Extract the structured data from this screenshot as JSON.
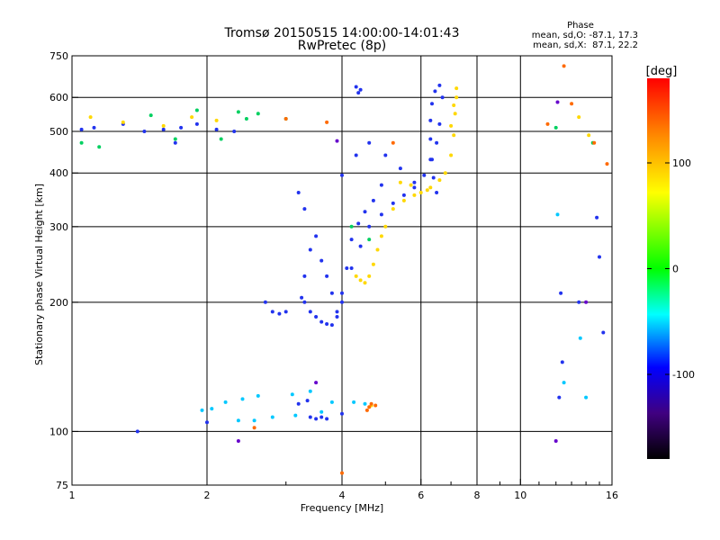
{
  "chart_data": {
    "type": "scatter",
    "title": "Tromsø 20150515 14:00:00-14:01:43",
    "subtitle": "RwPretec (8p)",
    "stats": {
      "heading": "Phase",
      "line1": "mean, sd,O: -87.1, 17.3",
      "line2": "mean, sd,X:  87.1, 22.2"
    },
    "xlabel": "Frequency [MHz]",
    "ylabel": "Stationary phase Virtual Height [km]",
    "x_scale": "log",
    "y_scale": "log",
    "xlim": [
      1,
      16
    ],
    "ylim": [
      75,
      750
    ],
    "x_ticks": [
      1,
      2,
      4,
      6,
      8,
      10,
      16
    ],
    "x_tick_labels": [
      "1",
      "2",
      "4",
      "6",
      "8",
      "10",
      "16"
    ],
    "y_ticks": [
      75,
      100,
      200,
      300,
      400,
      500,
      600,
      750
    ],
    "y_tick_labels": [
      "75",
      "100",
      "200",
      "300",
      "400",
      "500",
      "600",
      "750"
    ],
    "x_gridlines": [
      2,
      4,
      6,
      8,
      10
    ],
    "y_gridlines": [
      100,
      200,
      300,
      400,
      500,
      600
    ],
    "grid": true,
    "colorbar": {
      "label": "[deg]",
      "range": [
        -180,
        180
      ],
      "ticks": [
        100,
        0,
        -100
      ],
      "tick_labels": [
        "100",
        "0",
        "-100"
      ],
      "colors": [
        "#ff0000",
        "#ff8000",
        "#ffff00",
        "#00ff00",
        "#00ffff",
        "#0000ff",
        "#400080",
        "#000000"
      ]
    },
    "series": [
      {
        "color": "#2233ee",
        "x": [
          1.05,
          1.12,
          1.3,
          1.45,
          1.6,
          1.75,
          1.9,
          2.1,
          2.3,
          1.7,
          3.25,
          3.3,
          3.4,
          3.5,
          3.6,
          3.7,
          3.8,
          3.9,
          4.0,
          4.1,
          4.2,
          4.35,
          4.5,
          4.7,
          4.9,
          3.3,
          3.4,
          3.5,
          3.6,
          3.7,
          3.8,
          3.9,
          4.0,
          4.2,
          4.4,
          4.6,
          4.9,
          5.2,
          5.5,
          5.8,
          6.1,
          6.3,
          6.5,
          6.6,
          6.7,
          6.6,
          6.45,
          6.35,
          6.3,
          6.3,
          6.35,
          6.4,
          6.5,
          4.0,
          4.3,
          4.6,
          5.0,
          5.4,
          5.8,
          3.3,
          3.2,
          2.7,
          2.8,
          2.9,
          3.0,
          3.4,
          3.5,
          3.6,
          3.7,
          3.2,
          3.35,
          4.3,
          4.35,
          4.4,
          12.2,
          12.3,
          12.4,
          14.8,
          15.0,
          15.3,
          1.4,
          2.0,
          4.0,
          13.5
        ],
        "y": [
          505,
          510,
          520,
          500,
          505,
          510,
          520,
          505,
          500,
          470,
          205,
          230,
          265,
          285,
          250,
          230,
          210,
          190,
          200,
          240,
          280,
          305,
          325,
          345,
          375,
          200,
          190,
          185,
          180,
          178,
          177,
          185,
          210,
          240,
          270,
          300,
          320,
          340,
          355,
          370,
          395,
          430,
          470,
          520,
          600,
          640,
          620,
          580,
          530,
          480,
          430,
          390,
          360,
          395,
          440,
          470,
          440,
          410,
          380,
          330,
          360,
          200,
          190,
          188,
          190,
          108,
          107,
          108,
          107,
          116,
          118,
          635,
          615,
          625,
          120,
          210,
          145,
          315,
          255,
          170,
          100,
          105,
          110,
          200
        ],
        "phase": -100
      },
      {
        "color": "#ffd800",
        "x": [
          1.1,
          1.3,
          1.6,
          1.85,
          2.1,
          4.3,
          4.4,
          4.5,
          4.6,
          4.7,
          4.8,
          4.9,
          5.0,
          5.2,
          5.5,
          5.8,
          6.0,
          6.3,
          6.6,
          6.8,
          7.0,
          7.1,
          7.15,
          7.2,
          7.2,
          7.1,
          7.0,
          5.4,
          5.7,
          6.2,
          4.65,
          13.5,
          14.2
        ],
        "y": [
          540,
          525,
          515,
          540,
          530,
          230,
          225,
          222,
          230,
          245,
          265,
          285,
          300,
          330,
          345,
          355,
          360,
          370,
          385,
          400,
          440,
          490,
          550,
          600,
          630,
          575,
          515,
          380,
          375,
          365,
          115,
          540,
          490
        ],
        "phase": 110
      },
      {
        "color": "#00d060",
        "x": [
          1.05,
          1.15,
          1.5,
          1.7,
          1.9,
          2.15,
          2.35,
          2.45,
          2.6,
          3.0,
          4.2,
          4.6,
          12.0,
          14.5
        ],
        "y": [
          470,
          460,
          545,
          480,
          560,
          480,
          555,
          535,
          550,
          535,
          300,
          280,
          510,
          470
        ],
        "phase": 0
      },
      {
        "color": "#00c8ff",
        "x": [
          1.95,
          2.05,
          2.2,
          2.4,
          2.6,
          3.1,
          3.4,
          3.6,
          3.8,
          4.25,
          4.5,
          2.35,
          2.55,
          2.8,
          3.15,
          12.1,
          12.5,
          13.6,
          14.0
        ],
        "y": [
          112,
          113,
          117,
          119,
          121,
          122,
          124,
          111,
          117,
          117,
          116,
          106,
          106,
          108,
          109,
          320,
          130,
          165,
          120
        ],
        "phase": -30
      },
      {
        "color": "#ff6a00",
        "x": [
          3.0,
          3.7,
          4.0,
          4.55,
          4.6,
          4.65,
          4.75,
          5.2,
          11.5,
          12.5,
          13.0,
          14.6,
          15.6,
          2.55
        ],
        "y": [
          535,
          525,
          80,
          112,
          114,
          116,
          115,
          470,
          520,
          710,
          580,
          470,
          420,
          102
        ],
        "phase": 140
      },
      {
        "color": "#6600cc",
        "x": [
          2.35,
          3.5,
          3.9,
          12.1,
          12.0,
          14.0
        ],
        "y": [
          95,
          130,
          475,
          585,
          95,
          200
        ],
        "phase": -130
      }
    ]
  }
}
